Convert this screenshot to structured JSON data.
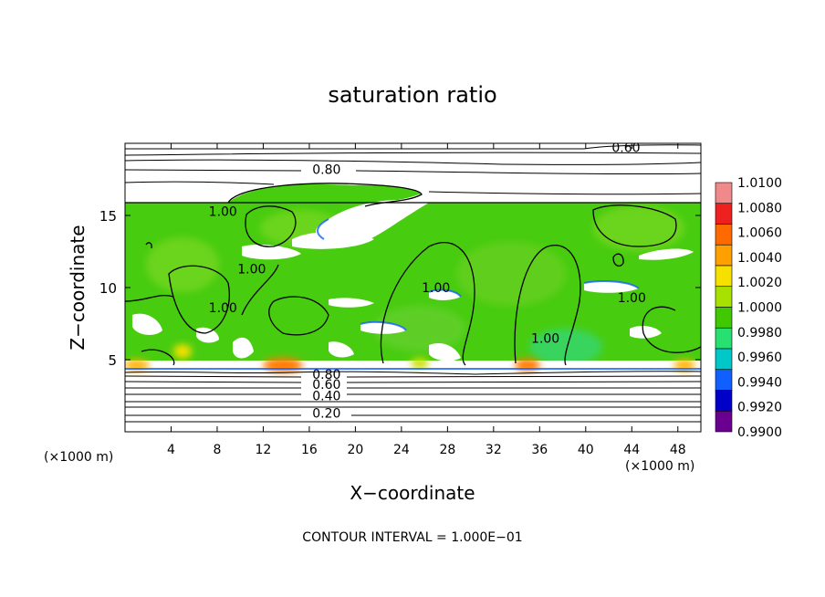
{
  "chart_data": {
    "type": "heatmap",
    "title": "saturation ratio",
    "xlabel": "X−coordinate",
    "ylabel": "Z−coordinate",
    "x_units": "(×1000 m)",
    "y_units": "(×1000 m)",
    "footer": "CONTOUR INTERVAL = 1.000E−01",
    "xlim": [
      0,
      50
    ],
    "ylim": [
      0,
      20
    ],
    "x_ticks": [
      "4",
      "8",
      "12",
      "16",
      "20",
      "24",
      "28",
      "32",
      "36",
      "40",
      "44",
      "48"
    ],
    "x_tick_values": [
      4,
      8,
      12,
      16,
      20,
      24,
      28,
      32,
      36,
      40,
      44,
      48
    ],
    "y_ticks": [
      "5",
      "10",
      "15"
    ],
    "y_tick_values": [
      5,
      10,
      15
    ],
    "colorbar": {
      "labels": [
        "1.0100",
        "1.0080",
        "1.0060",
        "1.0040",
        "1.0020",
        "1.0000",
        "0.9980",
        "0.9960",
        "0.9940",
        "0.9920",
        "0.9900"
      ],
      "colors": [
        "#f08a8a",
        "#ee2020",
        "#ff6a00",
        "#ffa000",
        "#f5e000",
        "#a8e000",
        "#40c800",
        "#28e070",
        "#00c8c8",
        "#1060ff",
        "#0000c8",
        "#6a0090"
      ]
    },
    "contour_labels": [
      {
        "text": "0.60",
        "x": 43.5,
        "z": 19.7
      },
      {
        "text": "0.80",
        "x": 17.5,
        "z": 18.2
      },
      {
        "text": "1.00",
        "x": 8.5,
        "z": 15.3
      },
      {
        "text": "1.00",
        "x": 11.0,
        "z": 11.3
      },
      {
        "text": "1.00",
        "x": 8.5,
        "z": 8.6
      },
      {
        "text": "1.00",
        "x": 27.0,
        "z": 10.0
      },
      {
        "text": "1.00",
        "x": 36.5,
        "z": 6.5
      },
      {
        "text": "1.00",
        "x": 44.0,
        "z": 9.3
      },
      {
        "text": "0.80",
        "x": 17.5,
        "z": 4.0
      },
      {
        "text": "0.60",
        "x": 17.5,
        "z": 3.3
      },
      {
        "text": "0.40",
        "x": 17.5,
        "z": 2.5
      },
      {
        "text": "0.20",
        "x": 17.5,
        "z": 1.3
      }
    ],
    "contour_levels_z": [
      0.9,
      1.3,
      1.8,
      2.2,
      2.6,
      3.0,
      3.4,
      3.8,
      4.1,
      18.0,
      18.6,
      19.2,
      19.7
    ]
  }
}
